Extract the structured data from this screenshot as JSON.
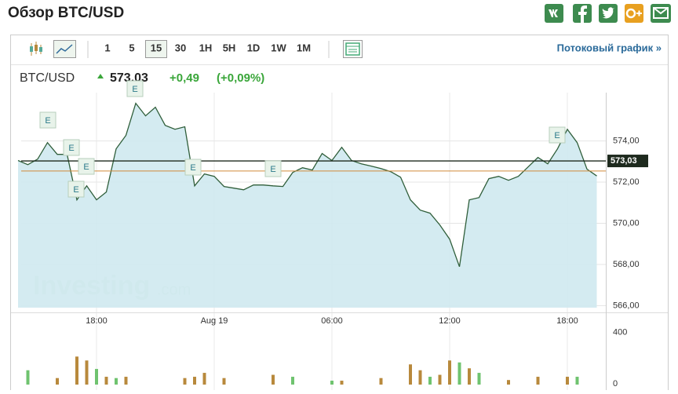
{
  "header": {
    "title": "Обзор BTC/USD",
    "intervals": [
      "1",
      "5",
      "15",
      "30",
      "1H",
      "5H",
      "1D",
      "1W",
      "1M"
    ],
    "selected_interval": "15",
    "stream_link": "Потоковый график »"
  },
  "quote": {
    "symbol": "BTC/USD",
    "change": "+0,49",
    "change_pct": "(+0,09%)"
  },
  "watermark": [
    "Investing",
    ".com"
  ],
  "chart_data": {
    "type": "line",
    "color": "#2f5e3a",
    "fill": "#cfe9f0",
    "categories": [
      null,
      null,
      null,
      null,
      null,
      null,
      null,
      null,
      "18:00",
      null,
      null,
      null,
      null,
      null,
      null,
      null,
      null,
      null,
      null,
      null,
      "Aug 19",
      null,
      null,
      null,
      null,
      null,
      null,
      null,
      null,
      null,
      null,
      null,
      "06:00",
      null,
      null,
      null,
      null,
      null,
      null,
      null,
      null,
      null,
      null,
      null,
      "12:00",
      null,
      null,
      null,
      null,
      null,
      null,
      null,
      null,
      null,
      null,
      null,
      "18:00",
      null,
      null,
      null
    ],
    "values": [
      573.05,
      572.85,
      573.12,
      573.92,
      573.35,
      573.35,
      571.14,
      571.82,
      571.14,
      571.52,
      573.62,
      574.27,
      575.83,
      575.22,
      575.64,
      574.76,
      574.57,
      574.69,
      571.82,
      572.4,
      572.28,
      571.79,
      571.71,
      571.63,
      571.86,
      571.86,
      571.82,
      571.79,
      572.47,
      572.7,
      572.59,
      573.39,
      573.05,
      573.69,
      573.05,
      572.89,
      572.78,
      572.66,
      572.51,
      572.24,
      571.14,
      570.64,
      570.49,
      569.92,
      569.23,
      567.89,
      571.14,
      571.25,
      572.17,
      572.28,
      572.09,
      572.28,
      572.74,
      573.2,
      572.89,
      573.62,
      574.57,
      573.92,
      572.63,
      572.3
    ],
    "ylim": [
      565.9,
      576.35
    ],
    "yticks": [
      {
        "value": 566,
        "label": "566,00"
      },
      {
        "value": 568,
        "label": "568,00"
      },
      {
        "value": 570,
        "label": "570,00"
      },
      {
        "value": 572,
        "label": "572,00"
      },
      {
        "value": 574,
        "label": "574,00"
      }
    ],
    "grid": true,
    "current": {
      "value": 573.03,
      "label": "573,03",
      "color": "#1e2a1e"
    },
    "prev_close": {
      "value": 572.54,
      "color": "#d08a3a"
    },
    "annotations": [
      "E",
      "E",
      "E",
      "E",
      "E",
      "E",
      "E",
      "E"
    ],
    "volume": {
      "ylim": [
        0,
        530
      ],
      "yticks": [
        0,
        400
      ],
      "values": [
        0,
        110,
        0,
        0,
        50,
        0,
        215,
        185,
        120,
        60,
        50,
        60,
        0,
        0,
        0,
        0,
        0,
        50,
        60,
        90,
        0,
        50,
        0,
        0,
        0,
        0,
        75,
        0,
        60,
        0,
        0,
        0,
        30,
        30,
        0,
        0,
        0,
        50,
        0,
        0,
        155,
        110,
        60,
        75,
        185,
        170,
        125,
        90,
        0,
        0,
        35,
        0,
        0,
        60,
        0,
        0,
        60,
        60,
        0,
        0
      ],
      "colors": [
        "#b8893c",
        "#6fc36f",
        "#b8893c",
        "#b8893c",
        "#b8893c",
        "#b8893c",
        "#b8893c",
        "#b8893c",
        "#6fc36f",
        "#b8893c",
        "#6fc36f",
        "#b8893c",
        "#b8893c",
        "#b8893c",
        "#b8893c",
        "#b8893c",
        "#b8893c",
        "#b8893c",
        "#b8893c",
        "#b8893c",
        "#b8893c",
        "#b8893c",
        "#b8893c",
        "#b8893c",
        "#b8893c",
        "#b8893c",
        "#b8893c",
        "#b8893c",
        "#6fc36f",
        "#b8893c",
        "#b8893c",
        "#b8893c",
        "#6fc36f",
        "#b8893c",
        "#b8893c",
        "#b8893c",
        "#b8893c",
        "#b8893c",
        "#b8893c",
        "#b8893c",
        "#b8893c",
        "#b8893c",
        "#6fc36f",
        "#b8893c",
        "#b8893c",
        "#6fc36f",
        "#b8893c",
        "#6fc36f",
        "#b8893c",
        "#b8893c",
        "#b8893c",
        "#b8893c",
        "#b8893c",
        "#b8893c",
        "#b8893c",
        "#b8893c",
        "#b8893c",
        "#6fc36f",
        "#b8893c",
        "#b8893c"
      ]
    }
  }
}
